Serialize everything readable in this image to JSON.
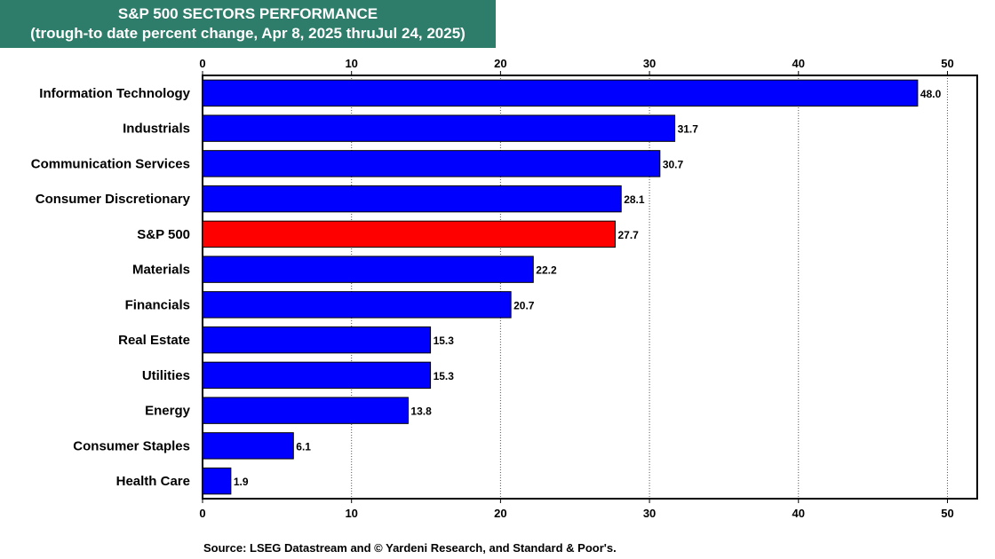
{
  "chart_data": {
    "type": "bar",
    "orientation": "horizontal",
    "title": "S&P 500 SECTORS PERFORMANCE",
    "subtitle": "(trough-to date percent change, Apr 8, 2025 thruJul 24, 2025)",
    "categories": [
      "Information Technology",
      "Industrials",
      "Communication Services",
      "Consumer Discretionary",
      "S&P 500",
      "Materials",
      "Financials",
      "Real Estate",
      "Utilities",
      "Energy",
      "Consumer Staples",
      "Health Care"
    ],
    "values": [
      48.0,
      31.7,
      30.7,
      28.1,
      27.7,
      22.2,
      20.7,
      15.3,
      15.3,
      13.8,
      6.1,
      1.9
    ],
    "value_labels": [
      "48.0",
      "31.7",
      "30.7",
      "28.1",
      "27.7",
      "22.2",
      "20.7",
      "15.3",
      "15.3",
      "13.8",
      "6.1",
      "1.9"
    ],
    "xlim": [
      0,
      52
    ],
    "xticks": [
      0,
      10,
      20,
      30,
      40,
      50
    ],
    "xtick_labels": [
      "0",
      "10",
      "20",
      "30",
      "40",
      "50"
    ],
    "grid": "vertical dotted",
    "colors": {
      "default_bar": "#0000ff",
      "highlight_bar": "#ff0000",
      "highlight_category": "S&P 500",
      "title_background": "#2e7d6b"
    }
  },
  "source": "Source: LSEG Datastream and © Yardeni Research, and Standard & Poor's."
}
